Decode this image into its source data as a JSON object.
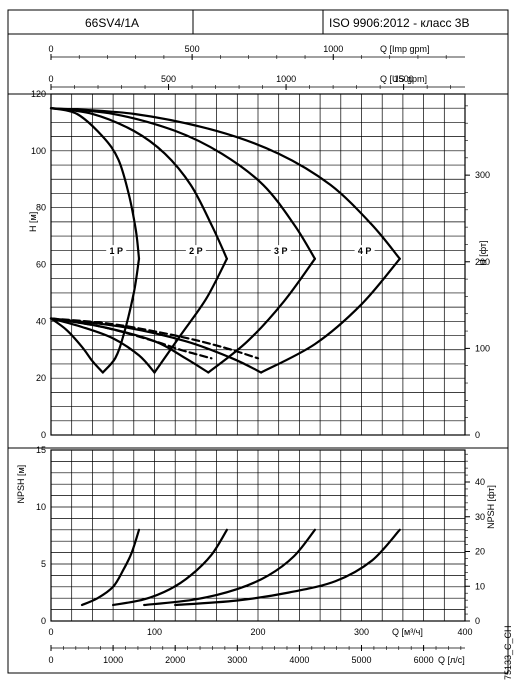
{
  "header": {
    "model": "66SV4/1A",
    "standard": "ISO 9906:2012 - класс 3B"
  },
  "colors": {
    "ink": "#000000",
    "paper": "#ffffff"
  },
  "chart_data": [
    {
      "type": "line",
      "title": "",
      "x_axis": {
        "label": "Q [м³/ч]",
        "range": [
          0,
          400
        ],
        "ticks": [
          0,
          100,
          200,
          300,
          400
        ]
      },
      "x_top_axes": [
        {
          "label": "Q [Imp gpm]",
          "range": [
            0,
            1466.7
          ],
          "ticks": [
            0,
            500,
            1000
          ]
        },
        {
          "label": "Q [US gpm]",
          "range": [
            0,
            1761.1
          ],
          "ticks": [
            0,
            500,
            1000,
            1500
          ]
        }
      ],
      "y_axis": {
        "label": "H [м]",
        "range": [
          0,
          120
        ],
        "ticks": [
          0,
          20,
          40,
          60,
          80,
          100,
          120
        ]
      },
      "y2_axis": {
        "label": "H [фт]",
        "ticks": [
          0,
          100,
          200,
          300
        ]
      },
      "grid": true,
      "series": [
        {
          "name": "1 P",
          "kind": "head",
          "dash": false,
          "points": [
            [
              0,
              115
            ],
            [
              25,
              113
            ],
            [
              50,
              105
            ],
            [
              65,
              97
            ],
            [
              75,
              85
            ],
            [
              82,
              72
            ],
            [
              85,
              62
            ]
          ]
        },
        {
          "name": "2 P",
          "kind": "head",
          "dash": false,
          "points": [
            [
              0,
              115
            ],
            [
              40,
              113
            ],
            [
              80,
              107
            ],
            [
              110,
              99
            ],
            [
              135,
              88
            ],
            [
              155,
              74
            ],
            [
              170,
              62
            ]
          ]
        },
        {
          "name": "3 P",
          "kind": "head",
          "dash": false,
          "points": [
            [
              0,
              115
            ],
            [
              60,
              113
            ],
            [
              120,
              107
            ],
            [
              165,
              99
            ],
            [
              205,
              88
            ],
            [
              235,
              74
            ],
            [
              255,
              62
            ]
          ]
        },
        {
          "name": "4 P",
          "kind": "head",
          "dash": false,
          "points": [
            [
              0,
              115
            ],
            [
              80,
              113
            ],
            [
              160,
              107
            ],
            [
              220,
              99
            ],
            [
              270,
              88
            ],
            [
              310,
              74
            ],
            [
              337,
              62
            ]
          ]
        },
        {
          "name": "",
          "kind": "limit",
          "dash": false,
          "points": [
            [
              85,
              62
            ],
            [
              80,
              50
            ],
            [
              70,
              35
            ],
            [
              62,
              27
            ],
            [
              50,
              22
            ]
          ]
        },
        {
          "name": "",
          "kind": "limit",
          "dash": false,
          "points": [
            [
              170,
              62
            ],
            [
              150,
              48
            ],
            [
              125,
              35
            ],
            [
              100,
              22
            ]
          ]
        },
        {
          "name": "",
          "kind": "limit",
          "dash": false,
          "points": [
            [
              255,
              62
            ],
            [
              225,
              47
            ],
            [
              190,
              33
            ],
            [
              152,
              22
            ]
          ]
        },
        {
          "name": "",
          "kind": "limit",
          "dash": false,
          "points": [
            [
              337,
              62
            ],
            [
              300,
              46
            ],
            [
              255,
              32
            ],
            [
              203,
              22
            ]
          ]
        },
        {
          "name": "",
          "kind": "efficiency",
          "dash": false,
          "points": [
            [
              0,
              41
            ],
            [
              15,
              37
            ],
            [
              30,
              31
            ],
            [
              40,
              26
            ],
            [
              50,
              22
            ]
          ]
        },
        {
          "name": "",
          "kind": "efficiency",
          "dash": false,
          "points": [
            [
              0,
              41
            ],
            [
              30,
              38
            ],
            [
              60,
              34
            ],
            [
              85,
              28
            ],
            [
              100,
              22
            ]
          ]
        },
        {
          "name": "",
          "kind": "efficiency",
          "dash": false,
          "points": [
            [
              0,
              41
            ],
            [
              50,
              38
            ],
            [
              100,
              33
            ],
            [
              130,
              27
            ],
            [
              152,
              22
            ]
          ]
        },
        {
          "name": "",
          "kind": "efficiency",
          "dash": false,
          "points": [
            [
              0,
              41
            ],
            [
              70,
              38
            ],
            [
              130,
              33
            ],
            [
              175,
              27
            ],
            [
              203,
              22
            ]
          ]
        },
        {
          "name": "",
          "kind": "efficiency-dashed",
          "dash": true,
          "points": [
            [
              0,
              41
            ],
            [
              50,
              38
            ],
            [
              100,
              33
            ],
            [
              125,
              30
            ],
            [
              155,
              27
            ]
          ]
        },
        {
          "name": "",
          "kind": "efficiency-dashed",
          "dash": true,
          "points": [
            [
              0,
              41
            ],
            [
              60,
              39
            ],
            [
              120,
              35
            ],
            [
              165,
              31
            ],
            [
              200,
              27
            ]
          ]
        }
      ],
      "series_labels": [
        {
          "text": "1 P",
          "x": 63,
          "y": 64
        },
        {
          "text": "2 P",
          "x": 140,
          "y": 64
        },
        {
          "text": "3 P",
          "x": 222,
          "y": 64
        },
        {
          "text": "4 P",
          "x": 303,
          "y": 64
        }
      ]
    },
    {
      "type": "line",
      "title": "",
      "x_axis": {
        "label": "Q [м³/ч]",
        "range": [
          0,
          400
        ],
        "ticks": [
          0,
          100,
          200,
          300,
          400
        ]
      },
      "x_bottom_axis": {
        "label": "Q [л/с]",
        "range": [
          0,
          6666.7
        ],
        "ticks": [
          0,
          1000,
          2000,
          3000,
          4000,
          5000,
          6000
        ]
      },
      "y_axis": {
        "label": "NPSH [м]",
        "range": [
          0,
          15
        ],
        "ticks": [
          0,
          5,
          10,
          15
        ]
      },
      "y2_axis": {
        "label": "NPSH [фт]",
        "ticks": [
          0,
          10,
          20,
          30,
          40
        ]
      },
      "grid": true,
      "series": [
        {
          "name": "",
          "points": [
            [
              30,
              1.4
            ],
            [
              45,
              2
            ],
            [
              60,
              3
            ],
            [
              70,
              4.5
            ],
            [
              78,
              6
            ],
            [
              85,
              8
            ]
          ]
        },
        {
          "name": "",
          "points": [
            [
              60,
              1.4
            ],
            [
              90,
              1.9
            ],
            [
              115,
              2.8
            ],
            [
              135,
              4
            ],
            [
              155,
              5.8
            ],
            [
              170,
              8
            ]
          ]
        },
        {
          "name": "",
          "points": [
            [
              90,
              1.4
            ],
            [
              140,
              1.9
            ],
            [
              180,
              2.8
            ],
            [
              210,
              4
            ],
            [
              235,
              5.7
            ],
            [
              255,
              8
            ]
          ]
        },
        {
          "name": "",
          "points": [
            [
              120,
              1.4
            ],
            [
              180,
              1.8
            ],
            [
              230,
              2.5
            ],
            [
              275,
              3.5
            ],
            [
              310,
              5.3
            ],
            [
              337,
              8
            ]
          ]
        }
      ]
    }
  ],
  "watermark": "75133_C_CH"
}
